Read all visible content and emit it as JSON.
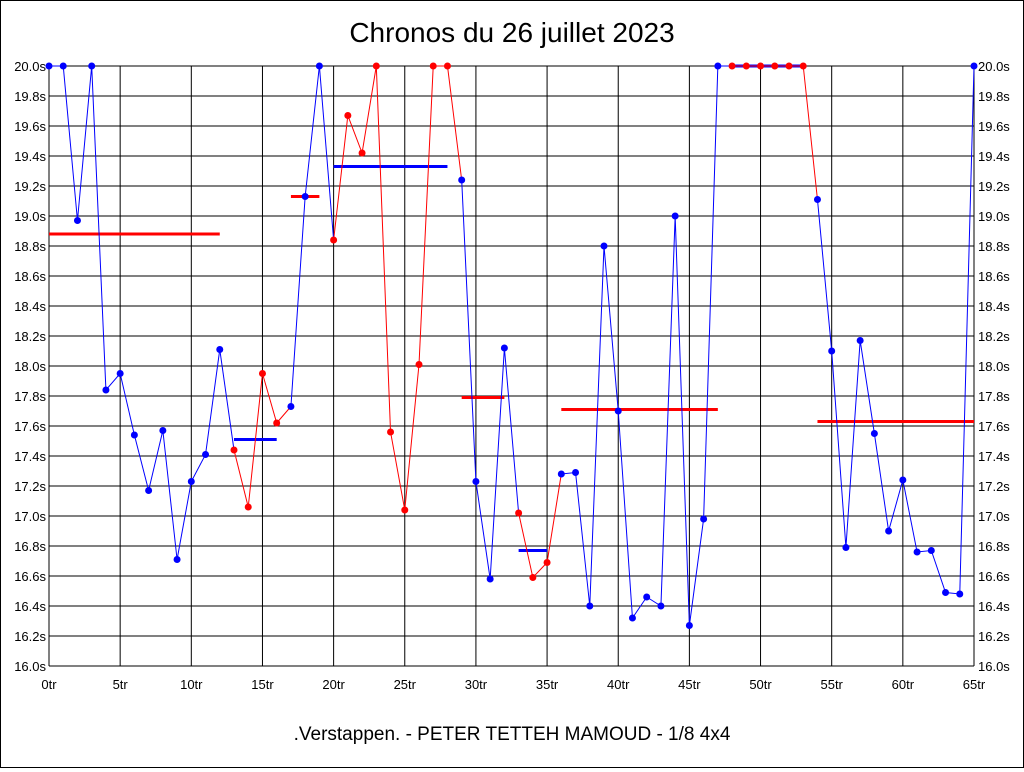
{
  "chart_data": {
    "type": "line",
    "title": "Chronos du 26 juillet 2023",
    "subtitle": ".Verstappen. - PETER TETTEH MAMOUD - 1/8 4x4",
    "xlim": [
      0,
      65
    ],
    "ylim": [
      16.0,
      20.0
    ],
    "x_tick_labels": [
      "0tr",
      "5tr",
      "10tr",
      "15tr",
      "20tr",
      "25tr",
      "30tr",
      "35tr",
      "40tr",
      "45tr",
      "50tr",
      "55tr",
      "60tr",
      "65tr"
    ],
    "y_tick_labels": [
      "16.0s",
      "16.2s",
      "16.4s",
      "16.6s",
      "16.8s",
      "17.0s",
      "17.2s",
      "17.4s",
      "17.6s",
      "17.8s",
      "18.0s",
      "18.2s",
      "18.4s",
      "18.6s",
      "18.8s",
      "19.0s",
      "19.2s",
      "19.4s",
      "19.6s",
      "19.8s",
      "20.0s"
    ],
    "grid": true,
    "colors": {
      "blue": "#0000ff",
      "red": "#ff0000"
    },
    "series": [
      {
        "color": "blue",
        "x": [
          0,
          1,
          2,
          3,
          4,
          5,
          6,
          7,
          8,
          9,
          10,
          11,
          12
        ],
        "y": [
          20.0,
          20.0,
          18.97,
          20.0,
          17.84,
          17.95,
          17.54,
          17.17,
          17.57,
          16.71,
          17.23,
          17.41,
          18.11
        ]
      },
      {
        "color": "red",
        "x": [
          13,
          14,
          15,
          16
        ],
        "y": [
          17.44,
          17.06,
          17.95,
          17.62
        ]
      },
      {
        "color": "blue",
        "x": [
          17,
          18,
          19
        ],
        "y": [
          17.73,
          19.13,
          20.0
        ]
      },
      {
        "color": "red",
        "x": [
          20,
          21,
          22,
          23,
          24,
          25,
          26,
          27,
          28
        ],
        "y": [
          18.84,
          19.67,
          19.42,
          20.0,
          17.56,
          17.04,
          18.01,
          20.0,
          20.0
        ]
      },
      {
        "color": "blue",
        "x": [
          29,
          30,
          31,
          32
        ],
        "y": [
          19.24,
          17.23,
          16.58,
          18.12
        ]
      },
      {
        "color": "red",
        "x": [
          33,
          34,
          35
        ],
        "y": [
          17.02,
          16.59,
          16.69
        ]
      },
      {
        "color": "blue",
        "x": [
          36,
          37,
          38,
          39,
          40,
          41,
          42,
          43,
          44,
          45,
          46,
          47
        ],
        "y": [
          17.28,
          17.29,
          16.4,
          18.8,
          17.7,
          16.32,
          16.46,
          16.4,
          19.0,
          16.27,
          16.98,
          20.0
        ]
      },
      {
        "color": "red",
        "x": [
          48,
          49,
          50,
          51,
          52,
          53
        ],
        "y": [
          20.0,
          20.0,
          20.0,
          20.0,
          20.0,
          20.0
        ]
      },
      {
        "color": "blue",
        "x": [
          54,
          55,
          56,
          57,
          58,
          59,
          60,
          61,
          62,
          63,
          64,
          65
        ],
        "y": [
          19.11,
          18.1,
          16.79,
          18.17,
          17.55,
          16.9,
          17.24,
          16.76,
          16.77,
          16.49,
          16.48,
          20.0
        ]
      }
    ],
    "averages": [
      {
        "color": "red",
        "x0": 0,
        "x1": 12,
        "y": 18.88
      },
      {
        "color": "blue",
        "x0": 13,
        "x1": 16,
        "y": 17.51
      },
      {
        "color": "red",
        "x0": 17,
        "x1": 19,
        "y": 19.13
      },
      {
        "color": "blue",
        "x0": 20,
        "x1": 28,
        "y": 19.33
      },
      {
        "color": "red",
        "x0": 29,
        "x1": 32,
        "y": 17.79
      },
      {
        "color": "blue",
        "x0": 33,
        "x1": 35,
        "y": 16.77
      },
      {
        "color": "red",
        "x0": 36,
        "x1": 47,
        "y": 17.71
      },
      {
        "color": "blue",
        "x0": 48,
        "x1": 53,
        "y": 20.0
      },
      {
        "color": "red",
        "x0": 54,
        "x1": 65,
        "y": 17.63
      }
    ]
  }
}
